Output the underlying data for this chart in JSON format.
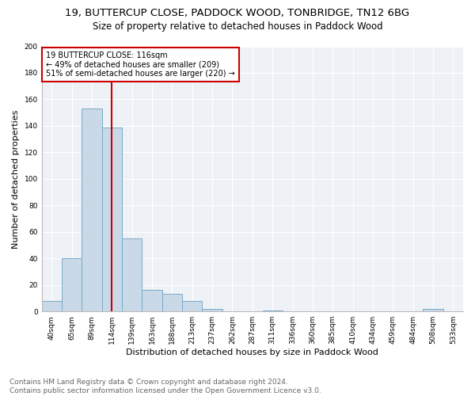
{
  "title": "19, BUTTERCUP CLOSE, PADDOCK WOOD, TONBRIDGE, TN12 6BG",
  "subtitle": "Size of property relative to detached houses in Paddock Wood",
  "xlabel": "Distribution of detached houses by size in Paddock Wood",
  "ylabel": "Number of detached properties",
  "categories": [
    "40sqm",
    "65sqm",
    "89sqm",
    "114sqm",
    "139sqm",
    "163sqm",
    "188sqm",
    "213sqm",
    "237sqm",
    "262sqm",
    "287sqm",
    "311sqm",
    "336sqm",
    "360sqm",
    "385sqm",
    "410sqm",
    "434sqm",
    "459sqm",
    "484sqm",
    "508sqm",
    "533sqm"
  ],
  "values": [
    8,
    40,
    153,
    139,
    55,
    16,
    13,
    8,
    2,
    0,
    0,
    1,
    0,
    0,
    0,
    0,
    0,
    0,
    0,
    2,
    0
  ],
  "bar_color": "#c9d9e8",
  "bar_edge_color": "#7aaac8",
  "vline_x_index": 3,
  "vline_color": "#cc0000",
  "annotation_text": "19 BUTTERCUP CLOSE: 116sqm\n← 49% of detached houses are smaller (209)\n51% of semi-detached houses are larger (220) →",
  "annotation_box_color": "#ffffff",
  "annotation_box_edge": "#cc0000",
  "ylim": [
    0,
    200
  ],
  "yticks": [
    0,
    20,
    40,
    60,
    80,
    100,
    120,
    140,
    160,
    180,
    200
  ],
  "footer": "Contains HM Land Registry data © Crown copyright and database right 2024.\nContains public sector information licensed under the Open Government Licence v3.0.",
  "bg_color": "#eef2f7",
  "fig_bg_color": "#ffffff",
  "grid_color": "#ffffff",
  "title_fontsize": 9.5,
  "subtitle_fontsize": 8.5,
  "axis_label_fontsize": 8,
  "tick_fontsize": 6.5,
  "footer_fontsize": 6.5
}
